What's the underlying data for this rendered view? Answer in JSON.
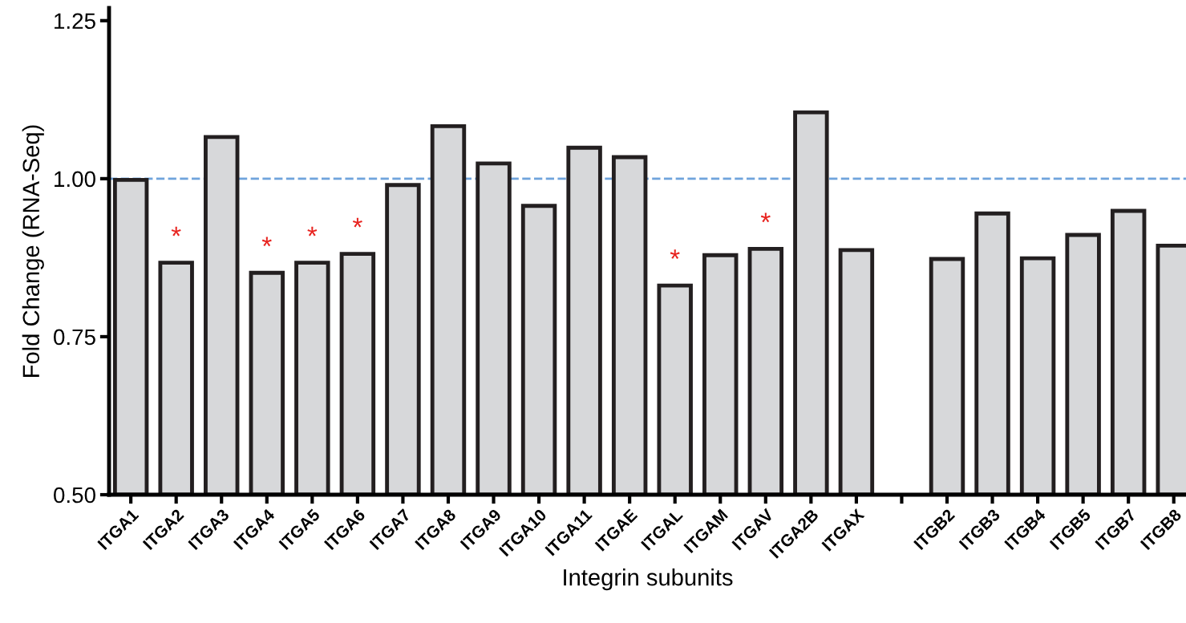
{
  "chart_data": {
    "type": "bar",
    "xlabel": "Integrin subunits",
    "ylabel": "Fold Change (RNA-Seq)",
    "categories": [
      "ITGA1",
      "ITGA2",
      "ITGA3",
      "ITGA4",
      "ITGA5",
      "ITGA6",
      "ITGA7",
      "ITGA8",
      "ITGA9",
      "ITGA10",
      "ITGA11",
      "ITGAE",
      "ITGAL",
      "ITGAM",
      "ITGAV",
      "ITGA2B",
      "ITGAX",
      null,
      "ITGB2",
      "ITGB3",
      "ITGB4",
      "ITGB5",
      "ITGB7",
      "ITGB8"
    ],
    "values": [
      0.998,
      0.867,
      1.066,
      0.851,
      0.867,
      0.881,
      0.99,
      1.083,
      1.024,
      0.957,
      1.049,
      1.034,
      0.831,
      0.879,
      0.889,
      1.105,
      0.887,
      null,
      0.873,
      0.945,
      0.874,
      0.911,
      0.949,
      0.894
    ],
    "color": "#d7d8da",
    "ylim": [
      0.5,
      1.27
    ],
    "yticks": [
      {
        "value": 0.5,
        "label": "0.50"
      },
      {
        "value": 0.75,
        "label": "0.75"
      },
      {
        "value": 1.0,
        "label": "1.00"
      },
      {
        "value": 1.25,
        "label": "1.25"
      }
    ],
    "ref_lines": [
      {
        "axis": "y",
        "value": 1.0,
        "color": "#6fa3dc",
        "line_style": "dashed"
      }
    ],
    "value_labels": [
      null,
      "*",
      null,
      "*",
      "*",
      "*",
      null,
      null,
      null,
      null,
      null,
      null,
      "*",
      null,
      "*",
      null,
      null,
      null,
      null,
      null,
      null,
      null,
      null,
      null
    ],
    "grid": false,
    "legend": false
  }
}
